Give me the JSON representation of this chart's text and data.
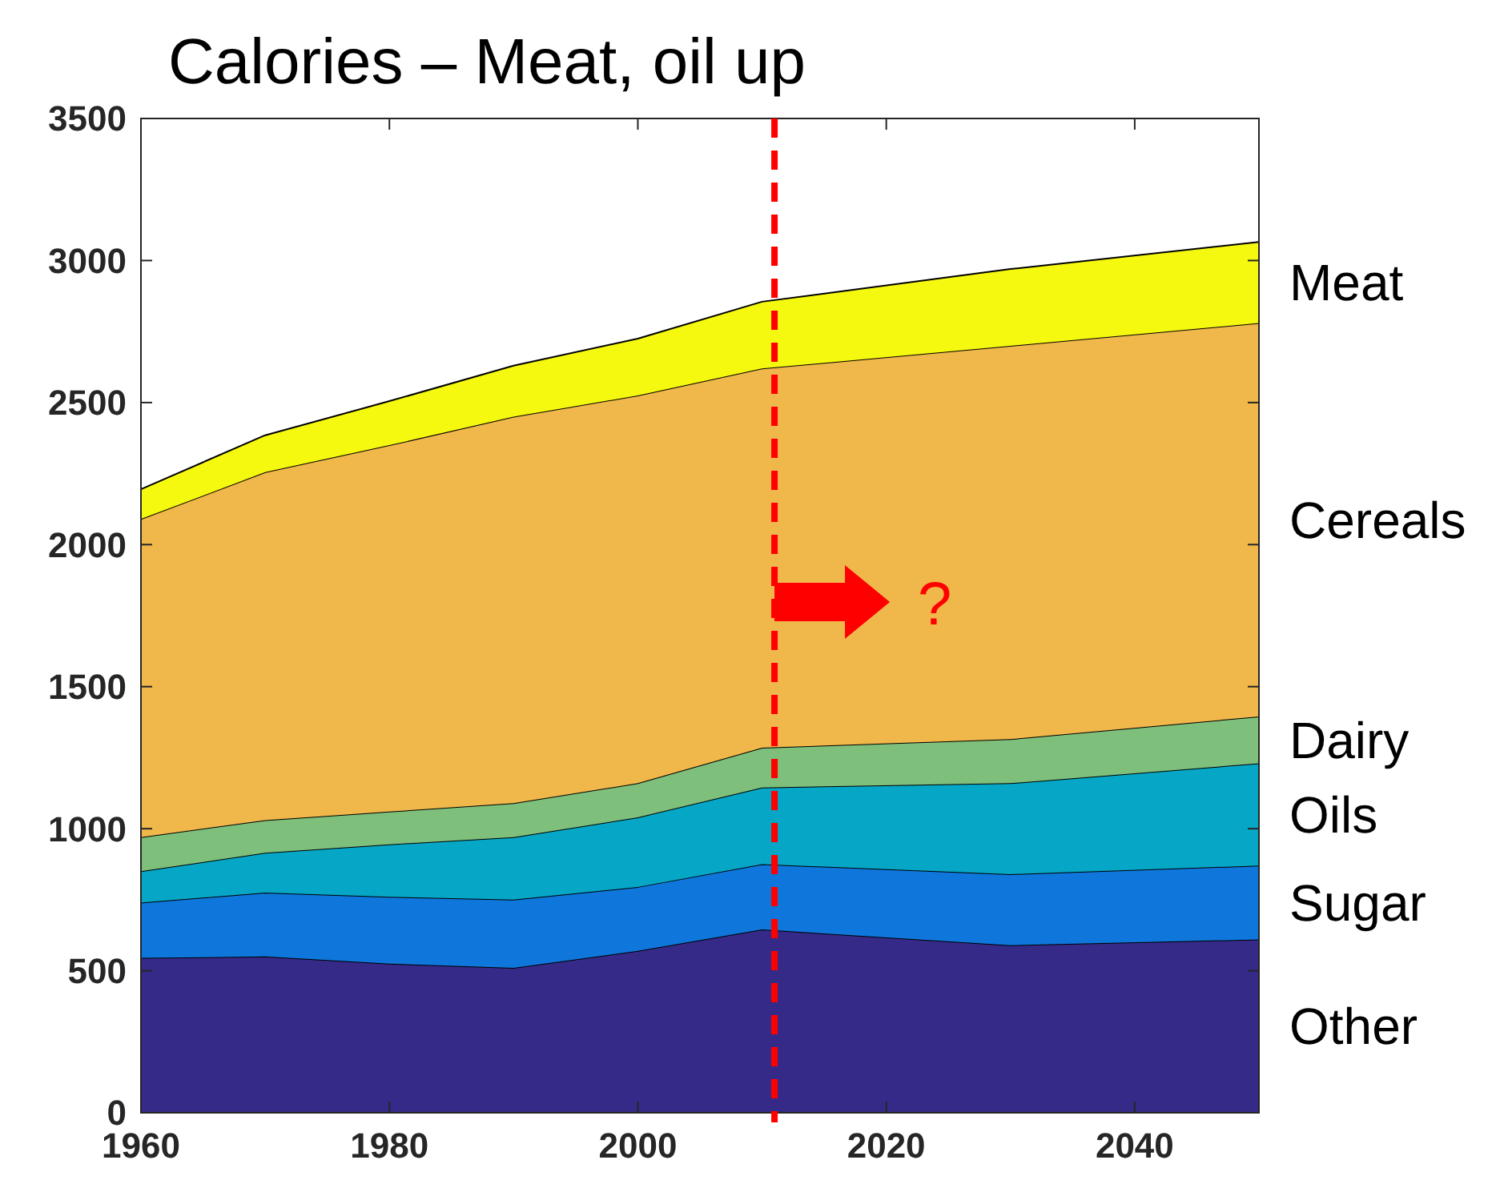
{
  "chart_data": {
    "type": "area",
    "stacked": true,
    "title": "Calories – Meat, oil up",
    "x": [
      1960,
      1970,
      1980,
      1990,
      2000,
      2010,
      2030,
      2050
    ],
    "xlim": [
      1960,
      2050
    ],
    "xticks": [
      1960,
      1980,
      2000,
      2020,
      2040
    ],
    "ylim": [
      0,
      3500
    ],
    "yticks": [
      0,
      500,
      1000,
      1500,
      2000,
      2500,
      3000,
      3500
    ],
    "grid": false,
    "legend": "right",
    "series": [
      {
        "name": "Other",
        "color": "#352a87",
        "values": [
          545,
          550,
          525,
          510,
          570,
          645,
          590,
          610
        ]
      },
      {
        "name": "Sugar",
        "color": "#0f77db",
        "values": [
          195,
          225,
          235,
          240,
          225,
          230,
          250,
          260
        ]
      },
      {
        "name": "Oils",
        "color": "#06a7c6",
        "values": [
          110,
          140,
          185,
          220,
          245,
          270,
          320,
          360
        ]
      },
      {
        "name": "Dairy",
        "color": "#7dbf7b",
        "values": [
          120,
          115,
          115,
          120,
          120,
          140,
          155,
          165
        ]
      },
      {
        "name": "Cereals",
        "color": "#f0b74a",
        "values": [
          1120,
          1225,
          1290,
          1360,
          1365,
          1335,
          1385,
          1385
        ]
      },
      {
        "name": "Meat",
        "color": "#f5f80f",
        "values": [
          105,
          130,
          155,
          180,
          200,
          235,
          270,
          285
        ]
      }
    ],
    "ref_lines": [
      {
        "axis": "x",
        "value": 2011,
        "color": "#ff0000",
        "line_style": "dashed"
      }
    ],
    "annotations": [
      "?"
    ]
  }
}
